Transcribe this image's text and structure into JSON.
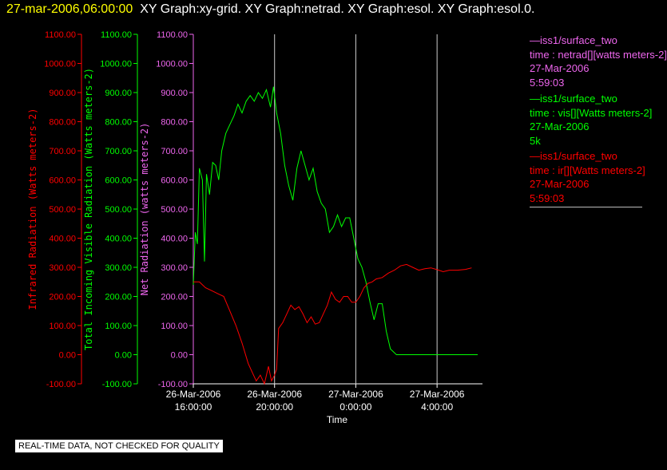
{
  "header": {
    "timestamp": "27-mar-2006,06:00:00",
    "titles": "XY Graph:xy-grid.  XY Graph:netrad.  XY Graph:esol.  XY Graph:esol.0."
  },
  "legend": [
    {
      "station": "—iss1/surface_two",
      "desc": "time : netrad[][watts meters-2]",
      "date": "27-Mar-2006",
      "extra": "5:59:03",
      "color": "#ee66ee"
    },
    {
      "station": "—iss1/surface_two",
      "desc": "time : vis[][Watts meters-2]",
      "date": "27-Mar-2006",
      "extra": "5k",
      "color": "#00ff00"
    },
    {
      "station": "—iss1/surface_two",
      "desc": "time : ir[][Watts meters-2]",
      "date": "27-Mar-2006",
      "extra": "5:59:03",
      "color": "#ff0000"
    }
  ],
  "footer": "REAL-TIME DATA, NOT CHECKED FOR QUALITY",
  "chart_data": {
    "type": "line",
    "xlabel": "Time",
    "x_ticks": [
      {
        "l1": "26-Mar-2006",
        "l2": "16:00:00",
        "h": 16
      },
      {
        "l1": "26-Mar-2006",
        "l2": "20:00:00",
        "h": 20
      },
      {
        "l1": "27-Mar-2006",
        "l2": "0:00:00",
        "h": 24
      },
      {
        "l1": "27-Mar-2006",
        "l2": "4:00:00",
        "h": 28
      }
    ],
    "xlim": [
      "26-Mar-2006 16:00:00",
      "27-Mar-2006 6:00:00"
    ],
    "y_ticks": [
      "-100.00",
      "0.00",
      "100.00",
      "200.00",
      "300.00",
      "400.00",
      "500.00",
      "600.00",
      "700.00",
      "800.00",
      "900.00",
      "1000.00",
      "1100.00"
    ],
    "ylim": [
      -100,
      1100
    ],
    "axes": [
      {
        "label": "Infrared Radiation (Watts meters-2)",
        "color": "#ff0000"
      },
      {
        "label": "Total Incoming Visible Radiation (Watts meters-2)",
        "color": "#00ff00"
      },
      {
        "label": "Net Radiation (watts meters-2)",
        "color": "#ee66ee"
      }
    ],
    "grid": "vertical lines at 16:00, 20:00, 0:00, 4:00",
    "series": [
      {
        "name": "vis",
        "color": "#00ff00",
        "points": [
          [
            16.0,
            240
          ],
          [
            16.1,
            420
          ],
          [
            16.2,
            380
          ],
          [
            16.3,
            640
          ],
          [
            16.45,
            600
          ],
          [
            16.55,
            320
          ],
          [
            16.65,
            620
          ],
          [
            16.8,
            550
          ],
          [
            16.95,
            660
          ],
          [
            17.1,
            650
          ],
          [
            17.25,
            600
          ],
          [
            17.4,
            700
          ],
          [
            17.6,
            760
          ],
          [
            17.8,
            790
          ],
          [
            18.0,
            820
          ],
          [
            18.2,
            860
          ],
          [
            18.4,
            830
          ],
          [
            18.6,
            870
          ],
          [
            18.8,
            890
          ],
          [
            19.0,
            870
          ],
          [
            19.2,
            900
          ],
          [
            19.4,
            880
          ],
          [
            19.6,
            910
          ],
          [
            19.8,
            850
          ],
          [
            19.95,
            920
          ],
          [
            20.1,
            830
          ],
          [
            20.3,
            760
          ],
          [
            20.5,
            650
          ],
          [
            20.7,
            580
          ],
          [
            20.9,
            530
          ],
          [
            21.1,
            640
          ],
          [
            21.3,
            700
          ],
          [
            21.5,
            650
          ],
          [
            21.7,
            600
          ],
          [
            21.9,
            640
          ],
          [
            22.1,
            560
          ],
          [
            22.3,
            520
          ],
          [
            22.5,
            500
          ],
          [
            22.7,
            420
          ],
          [
            22.9,
            440
          ],
          [
            23.1,
            480
          ],
          [
            23.3,
            440
          ],
          [
            23.5,
            470
          ],
          [
            23.7,
            470
          ],
          [
            23.9,
            400
          ],
          [
            24.1,
            330
          ],
          [
            24.3,
            300
          ],
          [
            24.5,
            250
          ],
          [
            24.7,
            180
          ],
          [
            24.9,
            120
          ],
          [
            25.1,
            175
          ],
          [
            25.3,
            175
          ],
          [
            25.5,
            80
          ],
          [
            25.7,
            20
          ],
          [
            26.0,
            0
          ],
          [
            27.0,
            0
          ],
          [
            28.0,
            0
          ],
          [
            29.0,
            0
          ],
          [
            30.0,
            0
          ]
        ]
      },
      {
        "name": "ir",
        "color": "#ff0000",
        "points": [
          [
            16.0,
            250
          ],
          [
            16.3,
            250
          ],
          [
            16.6,
            230
          ],
          [
            16.9,
            220
          ],
          [
            17.2,
            210
          ],
          [
            17.5,
            200
          ],
          [
            17.8,
            150
          ],
          [
            18.1,
            100
          ],
          [
            18.4,
            40
          ],
          [
            18.7,
            -30
          ],
          [
            18.9,
            -60
          ],
          [
            19.1,
            -90
          ],
          [
            19.3,
            -70
          ],
          [
            19.5,
            -100
          ],
          [
            19.7,
            -40
          ],
          [
            19.85,
            -90
          ],
          [
            20.0,
            -70
          ],
          [
            20.1,
            -50
          ],
          [
            20.2,
            90
          ],
          [
            20.4,
            110
          ],
          [
            20.6,
            140
          ],
          [
            20.8,
            170
          ],
          [
            21.0,
            155
          ],
          [
            21.2,
            165
          ],
          [
            21.4,
            140
          ],
          [
            21.6,
            110
          ],
          [
            21.8,
            130
          ],
          [
            22.0,
            105
          ],
          [
            22.2,
            110
          ],
          [
            22.4,
            140
          ],
          [
            22.6,
            170
          ],
          [
            22.8,
            215
          ],
          [
            23.0,
            190
          ],
          [
            23.2,
            180
          ],
          [
            23.4,
            200
          ],
          [
            23.6,
            200
          ],
          [
            23.8,
            180
          ],
          [
            24.0,
            180
          ],
          [
            24.2,
            200
          ],
          [
            24.4,
            230
          ],
          [
            24.6,
            245
          ],
          [
            24.8,
            250
          ],
          [
            25.0,
            260
          ],
          [
            25.3,
            265
          ],
          [
            25.6,
            280
          ],
          [
            25.9,
            290
          ],
          [
            26.2,
            305
          ],
          [
            26.5,
            310
          ],
          [
            26.8,
            300
          ],
          [
            27.1,
            290
          ],
          [
            27.4,
            295
          ],
          [
            27.7,
            298
          ],
          [
            28.0,
            292
          ],
          [
            28.3,
            285
          ],
          [
            28.6,
            290
          ],
          [
            29.0,
            290
          ],
          [
            29.4,
            293
          ],
          [
            29.7,
            298
          ]
        ]
      }
    ]
  }
}
